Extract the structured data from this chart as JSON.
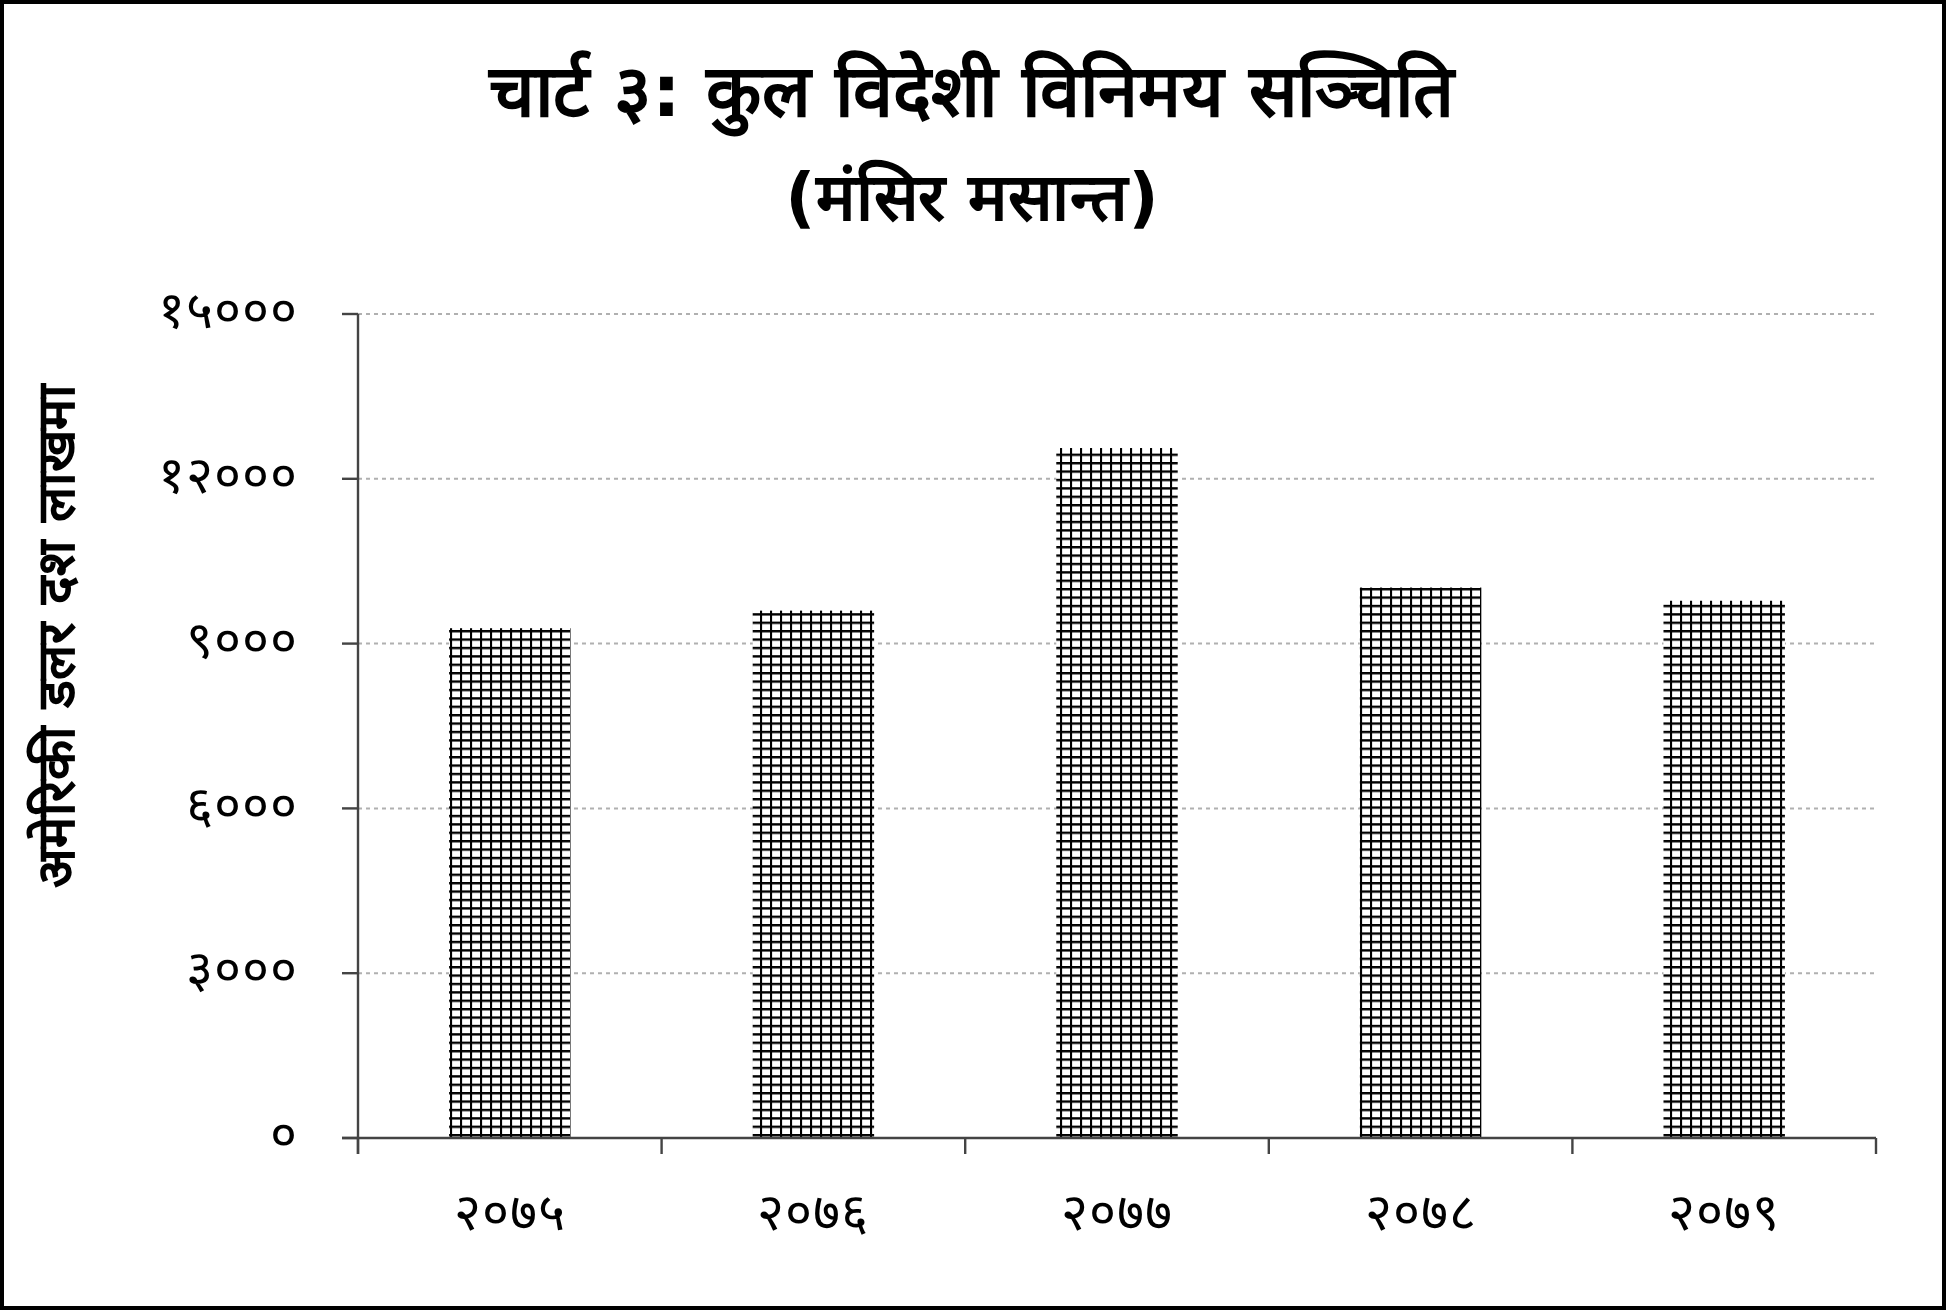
{
  "chart_data": {
    "type": "bar",
    "title": "चार्ट ३: कुल विदेशी विनिमय सञ्चिति",
    "subtitle": "(मंसिर मसान्त)",
    "ylabel": "अमेरिकी डलर दश लाखमा",
    "categories": [
      "२०७५",
      "२०७६",
      "२०७७",
      "२०७८",
      "२०७९"
    ],
    "values": [
      9280,
      9600,
      12560,
      10020,
      9780
    ],
    "color": "#000000",
    "ylim": [
      0,
      15000
    ],
    "yticks": [
      {
        "value": 0,
        "label": "०"
      },
      {
        "value": 3000,
        "label": "३०००"
      },
      {
        "value": 6000,
        "label": "६०००"
      },
      {
        "value": 9000,
        "label": "९०००"
      },
      {
        "value": 12000,
        "label": "१२०००"
      },
      {
        "value": 15000,
        "label": "१५०००"
      }
    ],
    "grid": "y"
  }
}
